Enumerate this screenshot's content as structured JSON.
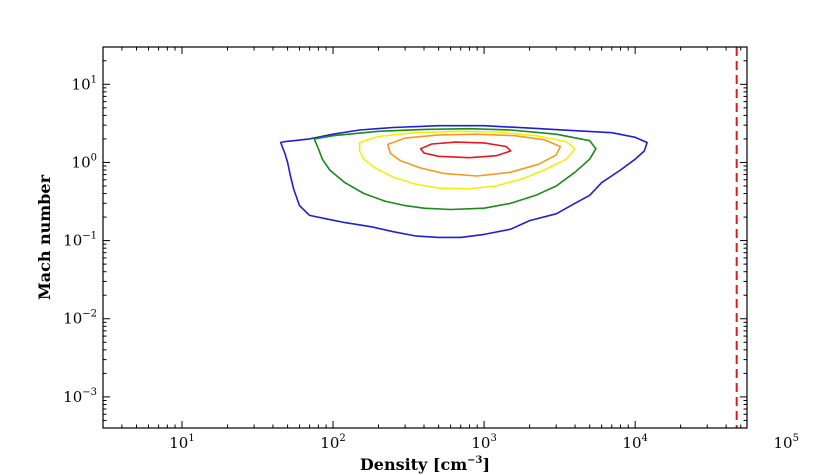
{
  "chart_data": {
    "type": "contour",
    "xlabel": "Density [cm",
    "xlabel_exp": "−3",
    "xlabel_close": "]",
    "ylabel": "Mach number",
    "x_scale": "log",
    "y_scale": "log",
    "xlim": [
      3,
      55000
    ],
    "ylim": [
      0.0004,
      30
    ],
    "x_ticks": [
      {
        "value": 10,
        "base": "10",
        "exp": "1"
      },
      {
        "value": 100,
        "base": "10",
        "exp": "2"
      },
      {
        "value": 1000,
        "base": "10",
        "exp": "3"
      },
      {
        "value": 10000,
        "base": "10",
        "exp": "4"
      },
      {
        "value": 100000,
        "base": "10",
        "exp": "5"
      }
    ],
    "y_ticks": [
      {
        "value": 0.001,
        "base": "10",
        "exp": "−3"
      },
      {
        "value": 0.01,
        "base": "10",
        "exp": "−2"
      },
      {
        "value": 0.1,
        "base": "10",
        "exp": "−1"
      },
      {
        "value": 1,
        "base": "10",
        "exp": "0"
      },
      {
        "value": 10,
        "base": "10",
        "exp": "1"
      }
    ],
    "threshold_line": {
      "x": 47000,
      "color": "#e31a1c",
      "style": "dashed"
    },
    "contours": [
      {
        "color": "#1f1fd6",
        "points": [
          [
            45,
            1.8
          ],
          [
            48,
            1.85
          ],
          [
            55,
            1.9
          ],
          [
            70,
            2.0
          ],
          [
            100,
            2.3
          ],
          [
            150,
            2.6
          ],
          [
            250,
            2.8
          ],
          [
            500,
            2.95
          ],
          [
            1000,
            2.95
          ],
          [
            2000,
            2.75
          ],
          [
            4000,
            2.55
          ],
          [
            7000,
            2.4
          ],
          [
            10000,
            2.1
          ],
          [
            12000,
            1.8
          ],
          [
            11500,
            1.4
          ],
          [
            10000,
            1.1
          ],
          [
            8000,
            0.8
          ],
          [
            6000,
            0.55
          ],
          [
            5000,
            0.38
          ],
          [
            4000,
            0.3
          ],
          [
            3000,
            0.22
          ],
          [
            2000,
            0.18
          ],
          [
            1500,
            0.14
          ],
          [
            1000,
            0.12
          ],
          [
            700,
            0.11
          ],
          [
            500,
            0.11
          ],
          [
            350,
            0.115
          ],
          [
            250,
            0.13
          ],
          [
            180,
            0.15
          ],
          [
            120,
            0.17
          ],
          [
            90,
            0.19
          ],
          [
            70,
            0.21
          ],
          [
            60,
            0.28
          ],
          [
            55,
            0.45
          ],
          [
            52,
            0.7
          ],
          [
            50,
            1.0
          ],
          [
            48,
            1.3
          ],
          [
            45,
            1.8
          ]
        ]
      },
      {
        "color": "#1a8a1a",
        "points": [
          [
            75,
            2.0
          ],
          [
            100,
            2.2
          ],
          [
            200,
            2.5
          ],
          [
            400,
            2.65
          ],
          [
            800,
            2.7
          ],
          [
            1500,
            2.6
          ],
          [
            3000,
            2.3
          ],
          [
            5000,
            1.9
          ],
          [
            5500,
            1.5
          ],
          [
            5000,
            1.1
          ],
          [
            4000,
            0.75
          ],
          [
            3000,
            0.5
          ],
          [
            2200,
            0.38
          ],
          [
            1500,
            0.3
          ],
          [
            1000,
            0.26
          ],
          [
            600,
            0.25
          ],
          [
            400,
            0.26
          ],
          [
            300,
            0.28
          ],
          [
            220,
            0.32
          ],
          [
            160,
            0.4
          ],
          [
            120,
            0.55
          ],
          [
            95,
            0.8
          ],
          [
            85,
            1.1
          ],
          [
            80,
            1.5
          ],
          [
            75,
            2.0
          ]
        ]
      },
      {
        "color": "#f4ee10",
        "points": [
          [
            150,
            1.8
          ],
          [
            200,
            2.15
          ],
          [
            350,
            2.4
          ],
          [
            700,
            2.5
          ],
          [
            1200,
            2.45
          ],
          [
            2200,
            2.2
          ],
          [
            3500,
            1.85
          ],
          [
            4000,
            1.5
          ],
          [
            3500,
            1.1
          ],
          [
            2500,
            0.8
          ],
          [
            1800,
            0.62
          ],
          [
            1200,
            0.5
          ],
          [
            800,
            0.46
          ],
          [
            500,
            0.47
          ],
          [
            350,
            0.53
          ],
          [
            250,
            0.65
          ],
          [
            190,
            0.85
          ],
          [
            160,
            1.1
          ],
          [
            150,
            1.4
          ],
          [
            150,
            1.8
          ]
        ]
      },
      {
        "color": "#f59a20",
        "points": [
          [
            230,
            1.7
          ],
          [
            300,
            2.05
          ],
          [
            500,
            2.25
          ],
          [
            900,
            2.3
          ],
          [
            1600,
            2.2
          ],
          [
            2500,
            1.95
          ],
          [
            3200,
            1.6
          ],
          [
            3000,
            1.25
          ],
          [
            2300,
            0.95
          ],
          [
            1500,
            0.75
          ],
          [
            900,
            0.67
          ],
          [
            550,
            0.72
          ],
          [
            380,
            0.85
          ],
          [
            280,
            1.05
          ],
          [
            240,
            1.3
          ],
          [
            230,
            1.7
          ]
        ]
      },
      {
        "color": "#e31a1c",
        "points": [
          [
            380,
            1.5
          ],
          [
            450,
            1.72
          ],
          [
            650,
            1.82
          ],
          [
            1000,
            1.78
          ],
          [
            1400,
            1.6
          ],
          [
            1500,
            1.4
          ],
          [
            1200,
            1.22
          ],
          [
            800,
            1.15
          ],
          [
            500,
            1.2
          ],
          [
            400,
            1.32
          ],
          [
            380,
            1.5
          ]
        ]
      }
    ]
  }
}
